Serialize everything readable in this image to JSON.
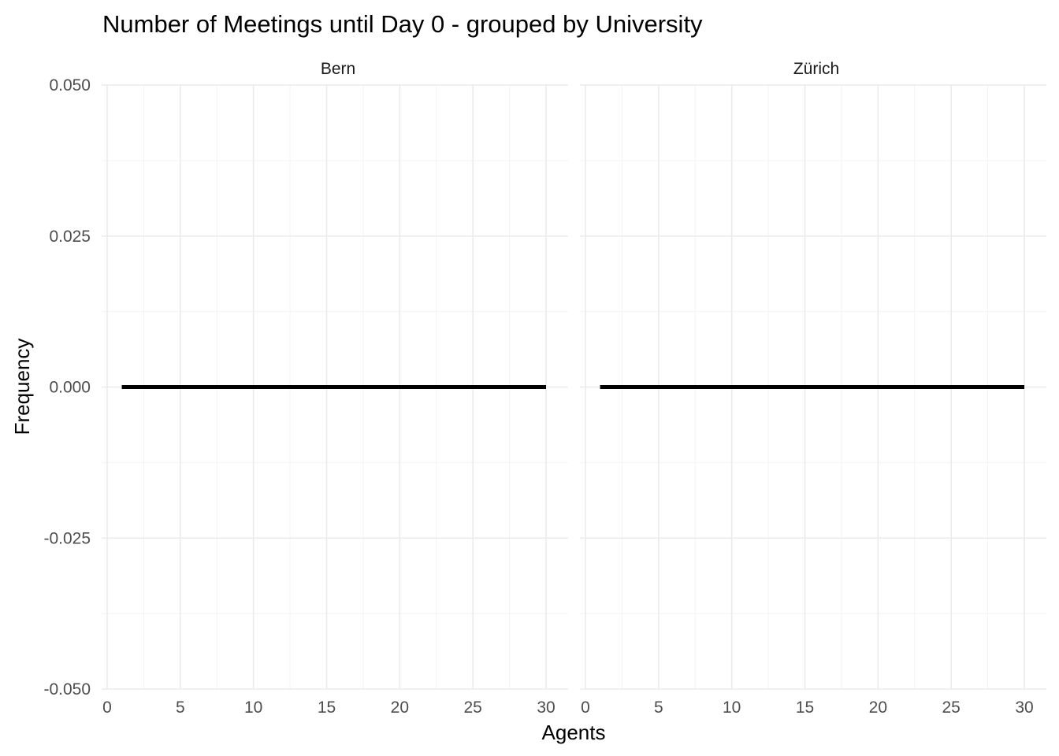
{
  "chart_data": {
    "type": "line",
    "title": "Number of Meetings until Day 0 - grouped by University",
    "xlabel": "Agents",
    "ylabel": "Frequency",
    "xlim": [
      0,
      30
    ],
    "ylim": [
      -0.05,
      0.05
    ],
    "x_ticks": [
      "0",
      "5",
      "10",
      "15",
      "20",
      "25",
      "30"
    ],
    "y_ticks": [
      "-0.050",
      "-0.025",
      "0.000",
      "0.025",
      "0.050"
    ],
    "grid": true,
    "facets": [
      {
        "label": "Bern",
        "series": [
          {
            "x": [
              1,
              30
            ],
            "values": [
              0,
              0
            ]
          }
        ]
      },
      {
        "label": "Zürich",
        "series": [
          {
            "x": [
              1,
              30
            ],
            "values": [
              0,
              0
            ]
          }
        ]
      }
    ]
  }
}
